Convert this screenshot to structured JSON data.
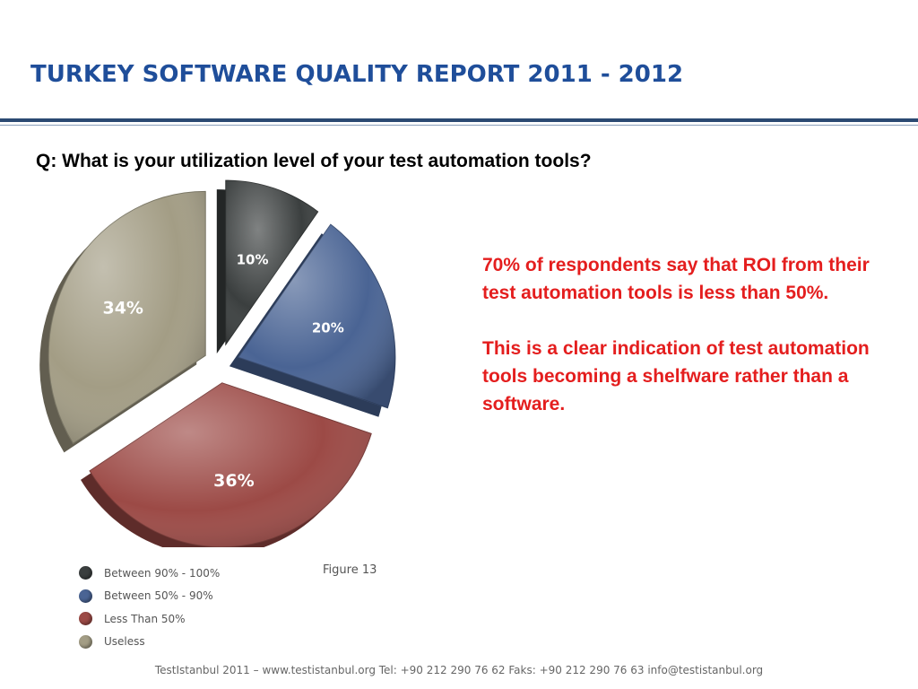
{
  "header": {
    "title": "TURKEY SOFTWARE QUALITY REPORT 2011 - 2012"
  },
  "question": "Q: What is your utilization level of your test automation tools?",
  "callout": {
    "paragraph1": "70% of respondents say that ROI from their test automation tools is less than 50%.",
    "paragraph2": "This is a clear indication of test automation tools becoming a shelfware rather than a software."
  },
  "figure_label": "Figure 13",
  "footer": "TestIstanbul 2011 – www.testistanbul.org  Tel: +90 212 290 76 62 Faks: +90 212 290 76 63 info@testistanbul.org",
  "colors": {
    "title": "#1f4e9a",
    "callout_text": "#e41e1e",
    "between_90_100": "#3b3f3f",
    "between_50_90": "#4a6494",
    "less_than_50": "#9c4a46",
    "useless": "#a39d85"
  },
  "chart_data": {
    "type": "pie",
    "categories": [
      "Between 90% - 100%",
      "Between 50% - 90%",
      "Less Than 50%",
      "Useless"
    ],
    "values": [
      10,
      20,
      36,
      34
    ],
    "labels": [
      "10%",
      "20%",
      "36%",
      "34%"
    ],
    "legend_position": "bottom-left",
    "exploded": true
  }
}
